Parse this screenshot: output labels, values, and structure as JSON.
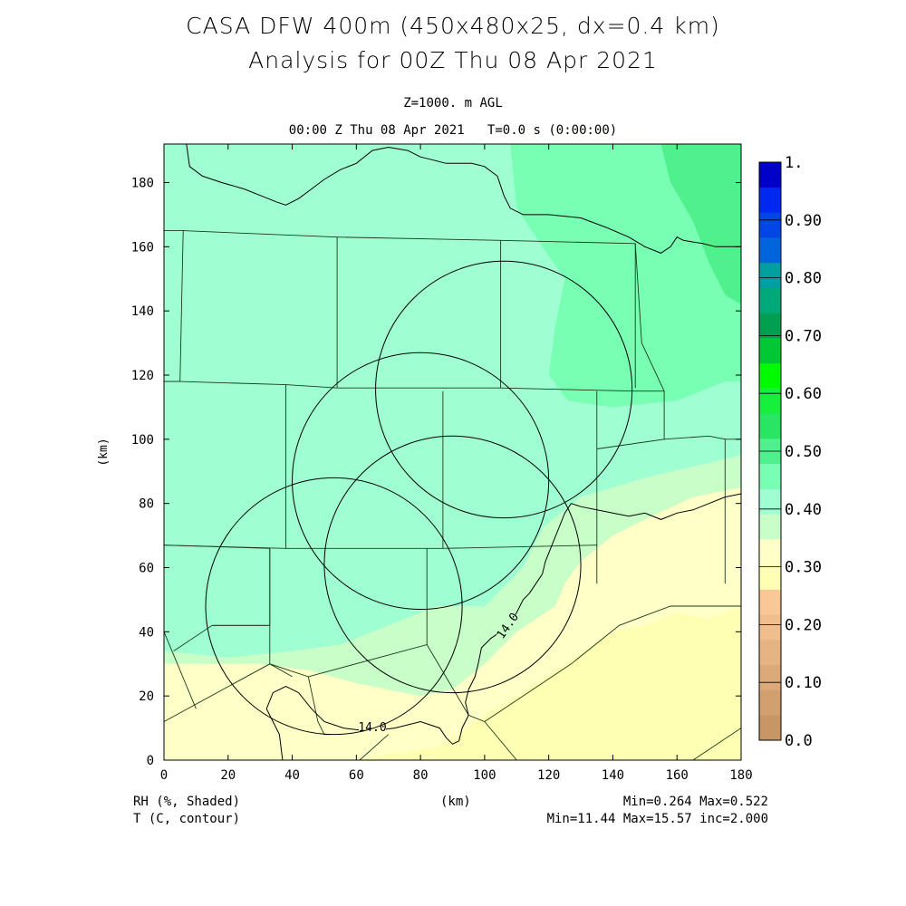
{
  "titles": {
    "line1": "CASA DFW 400m (450x480x25, dx=0.4 km)",
    "line2": "Analysis for 00Z Thu 08 Apr 2021",
    "level": "Z=1000. m AGL",
    "time": "00:00 Z Thu 08 Apr 2021   T=0.0 s (0:00:00)"
  },
  "footer": {
    "shaded_label": "RH (%, Shaded)",
    "contour_label": "T (C, contour)",
    "x_unit": "(km)",
    "rh_minmax": "Min=0.264 Max=0.522",
    "t_minmax": "Min=11.44 Max=15.57 inc=2.000"
  },
  "chart_data": {
    "type": "heatmap",
    "xlabel": "(km)",
    "ylabel": "(km)",
    "xlim": [
      0,
      180
    ],
    "ylim": [
      0,
      192
    ],
    "xticks": [
      0,
      20,
      40,
      60,
      80,
      100,
      120,
      140,
      160,
      180
    ],
    "yticks": [
      0,
      20,
      40,
      60,
      80,
      100,
      120,
      140,
      160,
      180
    ],
    "contour_label": "14.0",
    "colorbar": {
      "labels": [
        "0.0",
        "0.10",
        "0.20",
        "0.30",
        "0.40",
        "0.50",
        "0.60",
        "0.70",
        "0.80",
        "0.90",
        "1."
      ],
      "colors": [
        "#c89664",
        "#d2a06e",
        "#dcaa78",
        "#e6b482",
        "#f0be8c",
        "#fac896",
        "#ffffb4",
        "#ffffc8",
        "#c8ffc8",
        "#a0ffd2",
        "#78ffb4",
        "#50f08c",
        "#28e664",
        "#14f03c",
        "#00fa00",
        "#00c832",
        "#00a050",
        "#00aa78",
        "#00a0a0",
        "#0064dc",
        "#0046e6",
        "#0028f0",
        "#0000c8"
      ]
    },
    "radar_circles": [
      {
        "cx": 106,
        "cy": 115.5,
        "r": 40
      },
      {
        "cx": 80,
        "cy": 87,
        "r": 40
      },
      {
        "cx": 90,
        "cy": 61,
        "r": 40
      },
      {
        "cx": 53,
        "cy": 48,
        "r": 40
      }
    ],
    "rh_regions": [
      {
        "color": "#c8ffc8",
        "points": [
          [
            0,
            0
          ],
          [
            180,
            0
          ],
          [
            180,
            192
          ],
          [
            0,
            192
          ]
        ]
      },
      {
        "color": "#a0ffd2",
        "points": [
          [
            0,
            192
          ],
          [
            180,
            192
          ],
          [
            180,
            95
          ],
          [
            150,
            88
          ],
          [
            130,
            82
          ],
          [
            115,
            70
          ],
          [
            110,
            58
          ],
          [
            100,
            48
          ],
          [
            85,
            48
          ],
          [
            70,
            42
          ],
          [
            55,
            36
          ],
          [
            40,
            34
          ],
          [
            20,
            32
          ],
          [
            0,
            34
          ],
          [
            0,
            50
          ],
          [
            0,
            160
          ],
          [
            10,
            170
          ],
          [
            20,
            165
          ],
          [
            30,
            158
          ],
          [
            40,
            150
          ],
          [
            44,
            140
          ],
          [
            48,
            125
          ],
          [
            52,
            116
          ],
          [
            60,
            110
          ],
          [
            68,
            105
          ],
          [
            72,
            100
          ],
          [
            75,
            85
          ],
          [
            80,
            82
          ],
          [
            88,
            80
          ],
          [
            100,
            84
          ],
          [
            108,
            85
          ],
          [
            115,
            80
          ],
          [
            118,
            72
          ],
          [
            112,
            60
          ],
          [
            100,
            52
          ],
          [
            90,
            56
          ],
          [
            80,
            60
          ],
          [
            60,
            50
          ],
          [
            0,
            50
          ]
        ]
      },
      {
        "color": "#78ffb4",
        "points": [
          [
            180,
            192
          ],
          [
            108,
            192
          ],
          [
            110,
            172
          ],
          [
            118,
            160
          ],
          [
            125,
            150
          ],
          [
            122,
            135
          ],
          [
            120,
            120
          ],
          [
            126,
            112
          ],
          [
            140,
            110
          ],
          [
            160,
            112
          ],
          [
            175,
            118
          ],
          [
            180,
            118
          ]
        ]
      },
      {
        "color": "#50f08c",
        "points": [
          [
            180,
            192
          ],
          [
            155,
            192
          ],
          [
            158,
            180
          ],
          [
            165,
            168
          ],
          [
            170,
            155
          ],
          [
            175,
            145
          ],
          [
            180,
            142
          ]
        ]
      },
      {
        "color": "#ffffc8",
        "points": [
          [
            180,
            0
          ],
          [
            180,
            85
          ],
          [
            165,
            82
          ],
          [
            150,
            75
          ],
          [
            140,
            70
          ],
          [
            130,
            62
          ],
          [
            125,
            55
          ],
          [
            122,
            48
          ],
          [
            110,
            40
          ],
          [
            100,
            30
          ],
          [
            90,
            22
          ],
          [
            80,
            20
          ],
          [
            60,
            24
          ],
          [
            45,
            28
          ],
          [
            30,
            30
          ],
          [
            15,
            30
          ],
          [
            0,
            30
          ],
          [
            0,
            0
          ]
        ]
      },
      {
        "color": "#ffffb4",
        "points": [
          [
            180,
            0
          ],
          [
            180,
            48
          ],
          [
            170,
            44
          ],
          [
            160,
            46
          ],
          [
            150,
            42
          ],
          [
            140,
            40
          ],
          [
            125,
            30
          ],
          [
            110,
            20
          ],
          [
            100,
            14
          ],
          [
            92,
            8
          ],
          [
            85,
            4
          ],
          [
            70,
            2
          ],
          [
            60,
            0
          ]
        ]
      }
    ],
    "contour_14": [
      [
        37,
        0
      ],
      [
        36,
        8
      ],
      [
        34,
        12
      ],
      [
        32,
        16
      ],
      [
        34,
        21
      ],
      [
        38,
        23
      ],
      [
        42,
        21
      ],
      [
        46,
        16
      ],
      [
        50,
        12
      ],
      [
        56,
        10
      ],
      [
        64,
        9
      ],
      [
        72,
        10
      ],
      [
        80,
        12
      ],
      [
        86,
        10
      ],
      [
        88,
        7
      ],
      [
        90,
        5
      ],
      [
        92,
        6
      ],
      [
        93,
        10
      ],
      [
        95,
        14
      ],
      [
        94,
        18
      ],
      [
        95,
        22
      ],
      [
        97,
        26
      ],
      [
        98,
        30
      ],
      [
        99,
        35
      ],
      [
        102,
        38
      ],
      [
        105,
        40
      ],
      [
        108,
        43
      ],
      [
        110,
        46
      ],
      [
        112,
        50
      ],
      [
        114,
        52
      ],
      [
        116,
        55
      ],
      [
        118,
        58
      ],
      [
        119,
        62
      ],
      [
        121,
        67
      ],
      [
        123,
        72
      ],
      [
        125,
        77
      ],
      [
        127,
        80
      ],
      [
        130,
        79
      ],
      [
        135,
        78
      ],
      [
        140,
        77
      ],
      [
        145,
        76
      ],
      [
        150,
        77
      ],
      [
        155,
        75
      ],
      [
        160,
        77
      ],
      [
        165,
        78
      ],
      [
        170,
        80
      ],
      [
        175,
        82
      ],
      [
        180,
        83
      ]
    ],
    "contour_14b": [
      [
        7,
        192
      ],
      [
        8,
        185
      ],
      [
        12,
        182
      ],
      [
        18,
        180
      ],
      [
        25,
        178
      ],
      [
        30,
        176
      ],
      [
        35,
        174
      ],
      [
        38,
        173
      ],
      [
        42,
        175
      ],
      [
        46,
        178
      ],
      [
        50,
        181
      ],
      [
        55,
        184
      ],
      [
        60,
        186
      ],
      [
        65,
        190
      ],
      [
        70,
        191
      ],
      [
        76,
        190
      ],
      [
        80,
        188
      ],
      [
        84,
        187
      ],
      [
        88,
        186
      ],
      [
        92,
        186
      ],
      [
        96,
        186
      ],
      [
        100,
        185
      ],
      [
        104,
        182
      ],
      [
        106,
        176
      ],
      [
        108,
        172
      ],
      [
        112,
        170
      ],
      [
        120,
        170
      ],
      [
        130,
        169
      ],
      [
        138,
        166
      ],
      [
        145,
        163
      ],
      [
        150,
        160
      ],
      [
        155,
        158
      ],
      [
        158,
        160
      ],
      [
        160,
        163
      ],
      [
        162,
        162
      ],
      [
        168,
        161
      ],
      [
        172,
        160
      ],
      [
        176,
        160
      ],
      [
        180,
        160
      ]
    ],
    "county_lines": [
      [
        [
          0,
          165
        ],
        [
          6,
          165
        ],
        [
          5,
          118
        ],
        [
          0,
          118
        ]
      ],
      [
        [
          6,
          165
        ],
        [
          54,
          163
        ],
        [
          54,
          116
        ]
      ],
      [
        [
          54,
          163
        ],
        [
          105,
          162
        ],
        [
          105,
          116
        ]
      ],
      [
        [
          105,
          162
        ],
        [
          147,
          161
        ],
        [
          147,
          116
        ]
      ],
      [
        [
          0,
          118
        ],
        [
          5,
          118
        ],
        [
          38,
          117
        ],
        [
          54,
          116
        ],
        [
          105,
          116
        ],
        [
          147,
          115
        ],
        [
          156,
          115
        ]
      ],
      [
        [
          38,
          117
        ],
        [
          38,
          66
        ],
        [
          0,
          67
        ]
      ],
      [
        [
          87,
          115
        ],
        [
          87,
          66
        ]
      ],
      [
        [
          38,
          66
        ],
        [
          87,
          66
        ],
        [
          135,
          67
        ]
      ],
      [
        [
          135,
          115
        ],
        [
          135,
          67
        ],
        [
          135,
          55
        ]
      ],
      [
        [
          147,
          161
        ],
        [
          149,
          130
        ],
        [
          156,
          115
        ],
        [
          156,
          100
        ],
        [
          135,
          97
        ]
      ],
      [
        [
          156,
          100
        ],
        [
          170,
          101
        ],
        [
          175,
          100
        ],
        [
          175,
          55
        ]
      ],
      [
        [
          175,
          100
        ],
        [
          180,
          100
        ]
      ],
      [
        [
          0,
          67
        ],
        [
          33,
          66
        ],
        [
          33,
          42
        ],
        [
          15,
          42
        ],
        [
          3,
          34
        ]
      ],
      [
        [
          33,
          66
        ],
        [
          33,
          30
        ]
      ],
      [
        [
          33,
          42
        ],
        [
          15,
          42
        ]
      ],
      [
        [
          0,
          12
        ],
        [
          33,
          30
        ],
        [
          45,
          26
        ],
        [
          82,
          36
        ],
        [
          82,
          66
        ]
      ],
      [
        [
          82,
          36
        ],
        [
          95,
          14
        ],
        [
          100,
          12
        ],
        [
          127,
          30
        ],
        [
          142,
          42
        ],
        [
          150,
          45
        ],
        [
          158,
          48
        ],
        [
          170,
          48
        ],
        [
          175,
          48
        ],
        [
          180,
          48
        ]
      ],
      [
        [
          100,
          12
        ],
        [
          110,
          0
        ]
      ],
      [
        [
          0,
          40
        ],
        [
          10,
          16
        ]
      ],
      [
        [
          33,
          30
        ],
        [
          40,
          26
        ]
      ],
      [
        [
          45,
          26
        ],
        [
          48,
          12
        ],
        [
          50,
          8
        ],
        [
          52,
          8
        ]
      ],
      [
        [
          180,
          10
        ],
        [
          165,
          0
        ]
      ],
      [
        [
          61,
          0
        ],
        [
          70,
          8
        ]
      ]
    ]
  }
}
